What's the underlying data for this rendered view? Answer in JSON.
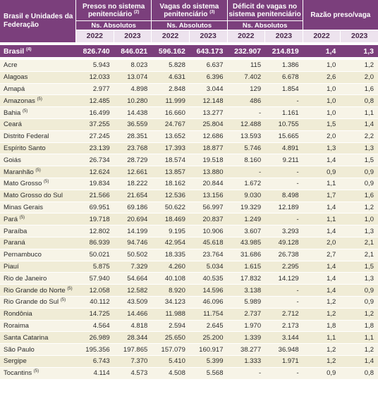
{
  "header": {
    "uf_label": "Brasil e Unidades da Federação",
    "groups": [
      {
        "title": "Presos no sistema penitenciário",
        "note": "(2)",
        "sub": "Ns. Absolutos"
      },
      {
        "title": "Vagas do sistema penitenciário",
        "note": "(3)",
        "sub": "Ns. Absolutos"
      },
      {
        "title": "Déficit de vagas no sistema penitenciário",
        "note": "",
        "sub": "Ns. Absolutos"
      },
      {
        "title": "Razão preso/vaga",
        "note": "",
        "sub": ""
      }
    ],
    "years": [
      "2022",
      "2023"
    ]
  },
  "brasil": {
    "name": "Brasil",
    "note": "(4)",
    "values": [
      "826.740",
      "846.021",
      "596.162",
      "643.173",
      "232.907",
      "214.819",
      "1,4",
      "1,3"
    ]
  },
  "rows": [
    {
      "name": "Acre",
      "note": "",
      "values": [
        "5.943",
        "8.023",
        "5.828",
        "6.637",
        "115",
        "1.386",
        "1,0",
        "1,2"
      ]
    },
    {
      "name": "Alagoas",
      "note": "",
      "values": [
        "12.033",
        "13.074",
        "4.631",
        "6.396",
        "7.402",
        "6.678",
        "2,6",
        "2,0"
      ]
    },
    {
      "name": "Amapá",
      "note": "",
      "values": [
        "2.977",
        "4.898",
        "2.848",
        "3.044",
        "129",
        "1.854",
        "1,0",
        "1,6"
      ]
    },
    {
      "name": "Amazonas",
      "note": "(5)",
      "values": [
        "12.485",
        "10.280",
        "11.999",
        "12.148",
        "486",
        "-",
        "1,0",
        "0,8"
      ]
    },
    {
      "name": "Bahia",
      "note": "(5)",
      "values": [
        "16.499",
        "14.438",
        "16.660",
        "13.277",
        "-",
        "1.161",
        "1,0",
        "1,1"
      ]
    },
    {
      "name": "Ceará",
      "note": "",
      "values": [
        "37.255",
        "36.559",
        "24.767",
        "25.804",
        "12.488",
        "10.755",
        "1,5",
        "1,4"
      ]
    },
    {
      "name": "Distrito Federal",
      "note": "",
      "values": [
        "27.245",
        "28.351",
        "13.652",
        "12.686",
        "13.593",
        "15.665",
        "2,0",
        "2,2"
      ]
    },
    {
      "name": "Espírito Santo",
      "note": "",
      "values": [
        "23.139",
        "23.768",
        "17.393",
        "18.877",
        "5.746",
        "4.891",
        "1,3",
        "1,3"
      ]
    },
    {
      "name": "Goiás",
      "note": "",
      "values": [
        "26.734",
        "28.729",
        "18.574",
        "19.518",
        "8.160",
        "9.211",
        "1,4",
        "1,5"
      ]
    },
    {
      "name": "Maranhão",
      "note": "(5)",
      "values": [
        "12.624",
        "12.661",
        "13.857",
        "13.880",
        "-",
        "-",
        "0,9",
        "0,9"
      ]
    },
    {
      "name": "Mato Grosso",
      "note": "(5)",
      "values": [
        "19.834",
        "18.222",
        "18.162",
        "20.844",
        "1.672",
        "-",
        "1,1",
        "0,9"
      ]
    },
    {
      "name": "Mato Grosso do Sul",
      "note": "",
      "values": [
        "21.566",
        "21.654",
        "12.536",
        "13.156",
        "9.030",
        "8.498",
        "1,7",
        "1,6"
      ]
    },
    {
      "name": "Minas Gerais",
      "note": "",
      "values": [
        "69.951",
        "69.186",
        "50.622",
        "56.997",
        "19.329",
        "12.189",
        "1,4",
        "1,2"
      ]
    },
    {
      "name": "Pará",
      "note": "(5)",
      "values": [
        "19.718",
        "20.694",
        "18.469",
        "20.837",
        "1.249",
        "-",
        "1,1",
        "1,0"
      ]
    },
    {
      "name": "Paraíba",
      "note": "",
      "values": [
        "12.802",
        "14.199",
        "9.195",
        "10.906",
        "3.607",
        "3.293",
        "1,4",
        "1,3"
      ]
    },
    {
      "name": "Paraná",
      "note": "",
      "values": [
        "86.939",
        "94.746",
        "42.954",
        "45.618",
        "43.985",
        "49.128",
        "2,0",
        "2,1"
      ]
    },
    {
      "name": "Pernambuco",
      "note": "",
      "values": [
        "50.021",
        "50.502",
        "18.335",
        "23.764",
        "31.686",
        "26.738",
        "2,7",
        "2,1"
      ]
    },
    {
      "name": "Piauí",
      "note": "",
      "values": [
        "5.875",
        "7.329",
        "4.260",
        "5.034",
        "1.615",
        "2.295",
        "1,4",
        "1,5"
      ]
    },
    {
      "name": "Rio de Janeiro",
      "note": "",
      "values": [
        "57.940",
        "54.664",
        "40.108",
        "40.535",
        "17.832",
        "14.129",
        "1,4",
        "1,3"
      ]
    },
    {
      "name": "Rio Grande do Norte",
      "note": "(5)",
      "values": [
        "12.058",
        "12.582",
        "8.920",
        "14.596",
        "3.138",
        "-",
        "1,4",
        "0,9"
      ]
    },
    {
      "name": "Rio Grande do Sul",
      "note": "(5)",
      "values": [
        "40.112",
        "43.509",
        "34.123",
        "46.096",
        "5.989",
        "-",
        "1,2",
        "0,9"
      ]
    },
    {
      "name": "Rondônia",
      "note": "",
      "values": [
        "14.725",
        "14.466",
        "11.988",
        "11.754",
        "2.737",
        "2.712",
        "1,2",
        "1,2"
      ]
    },
    {
      "name": "Roraima",
      "note": "",
      "values": [
        "4.564",
        "4.818",
        "2.594",
        "2.645",
        "1.970",
        "2.173",
        "1,8",
        "1,8"
      ]
    },
    {
      "name": "Santa Catarina",
      "note": "",
      "values": [
        "26.989",
        "28.344",
        "25.650",
        "25.200",
        "1.339",
        "3.144",
        "1,1",
        "1,1"
      ]
    },
    {
      "name": "São Paulo",
      "note": "",
      "values": [
        "195.356",
        "197.865",
        "157.079",
        "160.917",
        "38.277",
        "36.948",
        "1,2",
        "1,2"
      ]
    },
    {
      "name": "Sergipe",
      "note": "",
      "values": [
        "6.743",
        "7.370",
        "5.410",
        "5.399",
        "1.333",
        "1.971",
        "1,2",
        "1,4"
      ]
    },
    {
      "name": "Tocantins",
      "note": "(5)",
      "values": [
        "4.114",
        "4.573",
        "4.508",
        "5.568",
        "-",
        "-",
        "0,9",
        "0,8"
      ]
    }
  ]
}
